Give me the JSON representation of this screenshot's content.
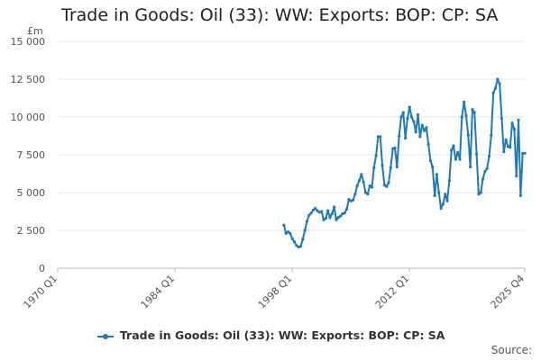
{
  "chart_data": {
    "type": "line",
    "title": "Trade in Goods: Oil (33): WW: Exports: BOP: CP: SA",
    "ylabel": "£m",
    "xlabel": "",
    "x_range": [
      "1970 Q1",
      "2025 Q4"
    ],
    "ylim": [
      0,
      15000
    ],
    "y_ticks": [
      0,
      2500,
      5000,
      7500,
      10000,
      12500,
      15000
    ],
    "y_tick_labels": [
      "0",
      "2 500",
      "5 000",
      "7 500",
      "10 000",
      "12 500",
      "15 000"
    ],
    "x_tick_labels": [
      "1970 Q1",
      "1984 Q1",
      "1998 Q1",
      "2012 Q1",
      "2025 Q4"
    ],
    "grid": true,
    "legend_position": "bottom",
    "source_label": "Source:",
    "colors": {
      "series": "#1f7ab6",
      "grid": "#e6e6e6",
      "axis": "#bbbbbb"
    },
    "series": [
      {
        "name": "Trade in Goods: Oil (33): WW: Exports: BOP: CP: SA",
        "points": [
          [
            "1997 Q1",
            2850
          ],
          [
            "1997 Q2",
            2300
          ],
          [
            "1997 Q3",
            2400
          ],
          [
            "1997 Q4",
            2300
          ],
          [
            "1998 Q1",
            1950
          ],
          [
            "1998 Q2",
            1750
          ],
          [
            "1998 Q3",
            1500
          ],
          [
            "1998 Q4",
            1400
          ],
          [
            "1999 Q1",
            1450
          ],
          [
            "1999 Q2",
            1900
          ],
          [
            "1999 Q3",
            2500
          ],
          [
            "1999 Q4",
            3100
          ],
          [
            "2000 Q1",
            3500
          ],
          [
            "2000 Q2",
            3650
          ],
          [
            "2000 Q3",
            3850
          ],
          [
            "2000 Q4",
            3950
          ],
          [
            "2001 Q1",
            3800
          ],
          [
            "2001 Q2",
            3700
          ],
          [
            "2001 Q3",
            3750
          ],
          [
            "2001 Q4",
            3200
          ],
          [
            "2002 Q1",
            3300
          ],
          [
            "2002 Q2",
            3800
          ],
          [
            "2002 Q3",
            3350
          ],
          [
            "2002 Q4",
            3600
          ],
          [
            "2003 Q1",
            4050
          ],
          [
            "2003 Q2",
            3200
          ],
          [
            "2003 Q3",
            3350
          ],
          [
            "2003 Q4",
            3450
          ],
          [
            "2004 Q1",
            3600
          ],
          [
            "2004 Q2",
            3650
          ],
          [
            "2004 Q3",
            3900
          ],
          [
            "2004 Q4",
            4550
          ],
          [
            "2005 Q1",
            4450
          ],
          [
            "2005 Q2",
            4500
          ],
          [
            "2005 Q3",
            4900
          ],
          [
            "2005 Q4",
            5450
          ],
          [
            "2006 Q1",
            5800
          ],
          [
            "2006 Q2",
            6200
          ],
          [
            "2006 Q3",
            5700
          ],
          [
            "2006 Q4",
            5000
          ],
          [
            "2007 Q1",
            4900
          ],
          [
            "2007 Q2",
            5450
          ],
          [
            "2007 Q3",
            5350
          ],
          [
            "2007 Q4",
            6650
          ],
          [
            "2008 Q1",
            7450
          ],
          [
            "2008 Q2",
            8700
          ],
          [
            "2008 Q3",
            8700
          ],
          [
            "2008 Q4",
            6800
          ],
          [
            "2009 Q1",
            5500
          ],
          [
            "2009 Q2",
            5400
          ],
          [
            "2009 Q3",
            5650
          ],
          [
            "2009 Q4",
            6650
          ],
          [
            "2010 Q1",
            7900
          ],
          [
            "2010 Q2",
            7950
          ],
          [
            "2010 Q3",
            6700
          ],
          [
            "2010 Q4",
            8750
          ],
          [
            "2011 Q1",
            10000
          ],
          [
            "2011 Q2",
            10300
          ],
          [
            "2011 Q3",
            8600
          ],
          [
            "2011 Q4",
            9900
          ],
          [
            "2012 Q1",
            10650
          ],
          [
            "2012 Q2",
            10000
          ],
          [
            "2012 Q3",
            9700
          ],
          [
            "2012 Q4",
            9000
          ],
          [
            "2013 Q1",
            10150
          ],
          [
            "2013 Q2",
            8700
          ],
          [
            "2013 Q3",
            9450
          ],
          [
            "2013 Q4",
            9100
          ],
          [
            "2014 Q1",
            9300
          ],
          [
            "2014 Q2",
            8200
          ],
          [
            "2014 Q3",
            7100
          ],
          [
            "2014 Q4",
            6700
          ],
          [
            "2015 Q1",
            4800
          ],
          [
            "2015 Q2",
            6200
          ],
          [
            "2015 Q3",
            5000
          ],
          [
            "2015 Q4",
            3950
          ],
          [
            "2016 Q1",
            4250
          ],
          [
            "2016 Q2",
            4900
          ],
          [
            "2016 Q3",
            4450
          ],
          [
            "2016 Q4",
            5800
          ],
          [
            "2017 Q1",
            7800
          ],
          [
            "2017 Q2",
            8100
          ],
          [
            "2017 Q3",
            7200
          ],
          [
            "2017 Q4",
            7650
          ],
          [
            "2018 Q1",
            7200
          ],
          [
            "2018 Q2",
            10000
          ],
          [
            "2018 Q3",
            11000
          ],
          [
            "2018 Q4",
            10100
          ],
          [
            "2019 Q1",
            8800
          ],
          [
            "2019 Q2",
            6700
          ],
          [
            "2019 Q3",
            10500
          ],
          [
            "2019 Q4",
            10300
          ],
          [
            "2020 Q1",
            7550
          ],
          [
            "2020 Q2",
            4900
          ],
          [
            "2020 Q3",
            5000
          ],
          [
            "2020 Q4",
            5900
          ],
          [
            "2021 Q1",
            6400
          ],
          [
            "2021 Q2",
            6600
          ],
          [
            "2021 Q3",
            7400
          ],
          [
            "2021 Q4",
            8800
          ],
          [
            "2022 Q1",
            11600
          ],
          [
            "2022 Q2",
            11900
          ],
          [
            "2022 Q3",
            12500
          ],
          [
            "2022 Q4",
            12200
          ],
          [
            "2023 Q1",
            9900
          ],
          [
            "2023 Q2",
            7700
          ],
          [
            "2023 Q3",
            8500
          ],
          [
            "2023 Q4",
            8050
          ],
          [
            "2024 Q1",
            8000
          ],
          [
            "2024 Q2",
            9600
          ],
          [
            "2024 Q3",
            9200
          ],
          [
            "2024 Q4",
            6100
          ],
          [
            "2025 Q1",
            9800
          ],
          [
            "2025 Q2",
            4800
          ],
          [
            "2025 Q3",
            7600
          ],
          [
            "2025 Q4",
            7600
          ]
        ]
      }
    ]
  }
}
